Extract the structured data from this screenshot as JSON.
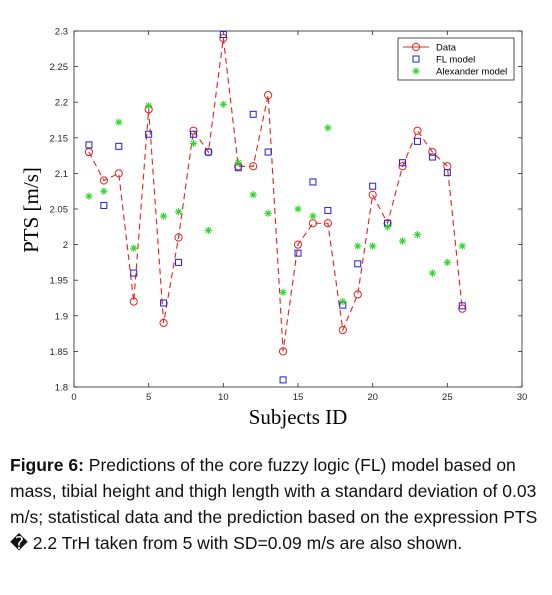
{
  "chart_data": {
    "type": "line",
    "xlabel": "Subjects ID",
    "ylabel": "PTS [m/s]",
    "xlim": [
      0,
      30
    ],
    "ylim": [
      1.8,
      2.3
    ],
    "xticks": [
      "0",
      "5",
      "10",
      "15",
      "20",
      "25",
      "30"
    ],
    "yticks": [
      "1.8",
      "1.85",
      "1.9",
      "1.95",
      "2",
      "2.05",
      "2.1",
      "2.15",
      "2.2",
      "2.25",
      "2.3"
    ],
    "grid": false,
    "legend_position": "top-right",
    "series": [
      {
        "name": "Data",
        "style": "dashed-line-circle",
        "color": "#e8211c",
        "x": [
          1,
          2,
          3,
          4,
          5,
          6,
          7,
          8,
          9,
          10,
          11,
          12,
          13,
          14,
          15,
          16,
          17,
          18,
          19,
          20,
          21,
          22,
          23,
          24,
          25,
          26
        ],
        "values": [
          2.13,
          2.09,
          2.1,
          1.92,
          2.19,
          1.89,
          2.01,
          2.16,
          2.13,
          2.29,
          2.11,
          2.11,
          2.21,
          1.85,
          2.0,
          2.03,
          2.03,
          1.88,
          1.93,
          2.07,
          2.03,
          2.11,
          2.16,
          2.13,
          2.11,
          1.91
        ]
      },
      {
        "name": "FL model",
        "style": "square",
        "color": "#1f1fd6",
        "x": [
          1,
          2,
          3,
          4,
          5,
          6,
          7,
          8,
          9,
          10,
          11,
          12,
          13,
          14,
          15,
          16,
          17,
          18,
          19,
          20,
          21,
          22,
          23,
          24,
          25,
          26
        ],
        "values": [
          2.14,
          2.055,
          2.138,
          1.96,
          2.155,
          1.918,
          1.975,
          2.155,
          2.13,
          2.295,
          2.108,
          2.183,
          2.13,
          1.81,
          1.988,
          2.088,
          2.048,
          1.915,
          1.973,
          2.082,
          2.03,
          2.115,
          2.145,
          2.123,
          2.101,
          1.914
        ]
      },
      {
        "name": "Alexander model",
        "style": "asterisk",
        "color": "#2dd62d",
        "x": [
          1,
          2,
          3,
          4,
          5,
          6,
          7,
          8,
          9,
          10,
          11,
          12,
          13,
          14,
          15,
          16,
          17,
          18,
          19,
          20,
          21,
          22,
          23,
          24,
          25,
          26
        ],
        "values": [
          2.068,
          2.075,
          2.172,
          1.995,
          2.195,
          2.04,
          2.046,
          2.142,
          2.02,
          2.197,
          2.115,
          2.07,
          2.044,
          1.933,
          2.05,
          2.04,
          2.164,
          1.92,
          1.998,
          1.998,
          2.025,
          2.005,
          2.014,
          1.96,
          1.975,
          1.998
        ]
      }
    ]
  },
  "caption": {
    "label": "Figure 6:",
    "text": " Predictions of the core fuzzy logic (FL) model based on mass, tibial height and thigh length with a standard deviation of 0.03 m/s; statistical data and the prediction based on the expression PTS � 2.2 TrH taken from 5 with SD=0.09 m/s are also shown."
  }
}
